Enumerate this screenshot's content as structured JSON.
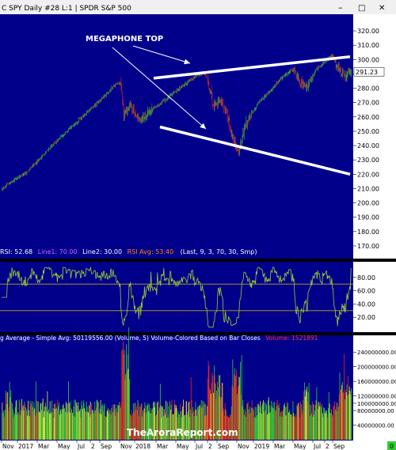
{
  "window": {
    "title": "C SPY  Daily  #28  L:1 | SPDR S&P 500",
    "minimize": "–",
    "maximize": "□",
    "close": "✕"
  },
  "colors": {
    "panel_bg": "#00008b",
    "up_bar": "#33cc33",
    "down_bar": "#ee2222",
    "neutral_bar": "#eeee33",
    "rsi_line": "#9acd32",
    "rsi_level_line": "#c8a21a",
    "rsi_label_line1": "#cc66ff",
    "rsi_label_line2": "#ffffff",
    "rsi_label_avg": "#ff8800",
    "volume_label_value": "#ff3333",
    "megaphone": "#ffffff",
    "axis_bg": "#ffffff",
    "price_marker_bg": "#ffffff"
  },
  "annotation": {
    "text": "MEGAPHONE TOP"
  },
  "rsi_header": {
    "rsi": "RSI: 52.68",
    "line1": "Line1: 70.00",
    "line2": "Line2: 30.00",
    "avg": "RSI Avg: 53.40",
    "params": "(Last, 9, 3, 70, 30, Smp)"
  },
  "volume_header": {
    "main": "g Average - Simple  Avg: 50119556.00  (Volume, 5)  Volume-Colored Based on Bar Closes",
    "value": "Volume: 1521891"
  },
  "watermark": "TheAroraReport.com",
  "corner_value": "0",
  "chart_data": [
    {
      "type": "candlestick",
      "series": [
        {
          "name": "SPY",
          "values": []
        }
      ],
      "y_ticks": [
        "320.00",
        "310.00",
        "300.00",
        "290.00",
        "280.00",
        "270.00",
        "260.00",
        "250.00",
        "240.00",
        "230.00",
        "220.00",
        "210.00",
        "200.00",
        "190.00",
        "180.00",
        "170.00"
      ],
      "ylim": [
        165,
        325
      ],
      "last_price": "291.23",
      "megaphone": {
        "upper_start": 287,
        "upper_end": 302,
        "lower_start": 253,
        "lower_end": 220
      }
    },
    {
      "type": "line",
      "series": [
        {
          "name": "RSI",
          "values": []
        }
      ],
      "y_ticks": [
        "80.00",
        "60.00",
        "40.00",
        "20.00"
      ],
      "ylim": [
        0,
        100
      ],
      "levels": [
        70,
        30
      ]
    },
    {
      "type": "bar",
      "series": [
        {
          "name": "Volume",
          "values": []
        }
      ],
      "y_ticks": [
        "240000000.00",
        "200000000.00",
        "160000000.00",
        "120000000.00",
        "100000000.00",
        "80000000.00",
        "40000000.00"
      ],
      "ylim": [
        0,
        260000000
      ]
    }
  ],
  "x_axis": {
    "ticks": [
      "Nov",
      "2017",
      "Mar",
      "May",
      "Jul",
      "2",
      "Sep",
      "Nov",
      "2018",
      "Mar",
      "May",
      "Jul",
      "2",
      "Sep",
      "Nov",
      "2019",
      "Mar",
      "May",
      "Jul",
      "2",
      "Sep"
    ]
  }
}
